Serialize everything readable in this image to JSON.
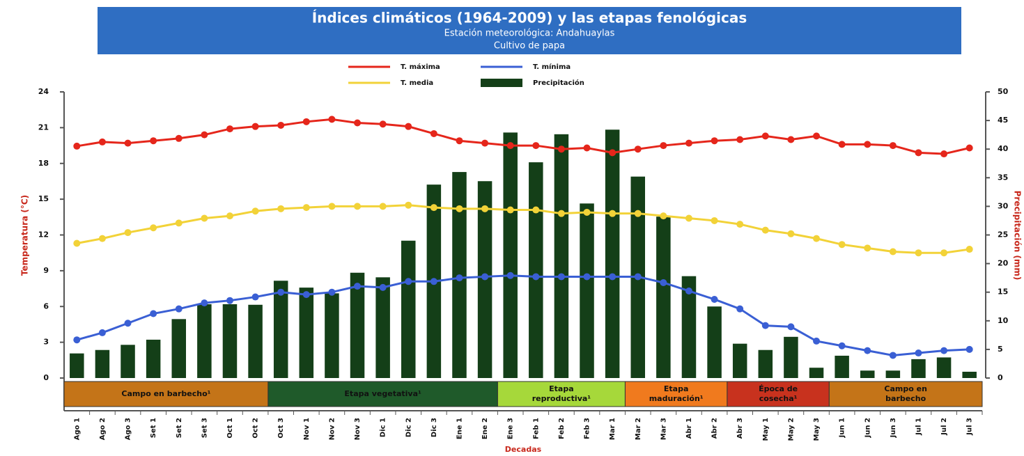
{
  "chart_data": {
    "type": "combo",
    "title": "Índices climáticos (1964-2009) y las etapas fenológicas",
    "subtitle": "Estación meteorológica: Andahuaylas",
    "subtitle2": "Cultivo de papa",
    "y_label": "Temperatura (°C)",
    "y2_label": "Precipitación (mm)",
    "x_label": "Decadas",
    "categories": [
      "Ago 1",
      "Ago 2",
      "Ago 3",
      "Set 1",
      "Set 2",
      "Set 3",
      "Oct 1",
      "Oct 2",
      "Oct 3",
      "Nov 1",
      "Nov 2",
      "Nov 3",
      "Dic 1",
      "Dic 2",
      "Dic 3",
      "Ene 1",
      "Ene 2",
      "Ene 3",
      "Feb 1",
      "Feb 2",
      "Feb 3",
      "Mar 1",
      "Mar 2",
      "Mar 3",
      "Abr 1",
      "Abr 2",
      "Abr 3",
      "May 1",
      "May 2",
      "May 3",
      "Jun 1",
      "Jun 2",
      "Jun 3",
      "Jul 1",
      "Jul 2",
      "Jul 3"
    ],
    "series": [
      {
        "name": "T. máxima",
        "type": "line",
        "color": "#e5261b",
        "values": [
          19.45,
          19.8,
          19.7,
          19.9,
          20.1,
          20.4,
          20.9,
          21.1,
          21.2,
          21.5,
          21.7,
          21.4,
          21.3,
          21.1,
          20.5,
          19.9,
          19.7,
          19.5,
          19.5,
          19.2,
          19.3,
          18.9,
          19.2,
          19.5,
          19.7,
          19.9,
          20.0,
          20.3,
          20.0,
          20.3,
          19.6,
          19.6,
          19.5,
          18.9,
          18.8,
          19.3
        ]
      },
      {
        "name": "T. mínima",
        "type": "line",
        "color": "#3a5fd4",
        "values": [
          3.2,
          3.8,
          4.6,
          5.4,
          5.8,
          6.3,
          6.5,
          6.8,
          7.2,
          7.0,
          7.2,
          7.7,
          7.6,
          8.1,
          8.1,
          8.4,
          8.5,
          8.6,
          8.5,
          8.5,
          8.5,
          8.5,
          8.5,
          8.0,
          7.3,
          6.6,
          5.8,
          4.4,
          4.3,
          3.1,
          2.7,
          2.3,
          1.9,
          2.1,
          2.3,
          2.4
        ]
      },
      {
        "name": "T. media",
        "type": "line",
        "color": "#f2d238",
        "values": [
          11.3,
          11.7,
          12.2,
          12.6,
          13.0,
          13.4,
          13.6,
          14.0,
          14.2,
          14.3,
          14.4,
          14.4,
          14.4,
          14.5,
          14.3,
          14.2,
          14.2,
          14.1,
          14.1,
          13.8,
          13.9,
          13.8,
          13.8,
          13.6,
          13.4,
          13.2,
          12.9,
          12.4,
          12.1,
          11.7,
          11.2,
          10.9,
          10.6,
          10.5,
          10.5,
          10.8
        ]
      },
      {
        "name": "Precipitación",
        "type": "bar",
        "axis": "y2",
        "color": "#143f18",
        "values": [
          4.3,
          4.9,
          5.8,
          6.7,
          10.3,
          12.9,
          12.9,
          12.8,
          17.0,
          15.8,
          14.8,
          18.4,
          17.6,
          24.0,
          33.8,
          36.0,
          34.4,
          42.9,
          37.7,
          42.6,
          30.5,
          43.4,
          35.2,
          28.2,
          17.8,
          12.5,
          6.0,
          4.9,
          7.2,
          1.8,
          3.9,
          1.3,
          1.3,
          3.3,
          3.6,
          1.1
        ]
      }
    ],
    "ylim": [
      0,
      24
    ],
    "yticks": [
      0,
      3,
      6,
      9,
      12,
      15,
      18,
      21,
      24
    ],
    "y2lim": [
      0,
      50
    ],
    "y2ticks": [
      0,
      5,
      10,
      15,
      20,
      25,
      30,
      35,
      40,
      45,
      50
    ],
    "stages": [
      {
        "label": "Campo en barbecho¹",
        "from": "Ago 1",
        "to": "Oct 2",
        "color": "#c47418"
      },
      {
        "label": "Etapa vegetativa¹",
        "from": "Oct 3",
        "to": "Ene 2",
        "color": "#1f5a2a"
      },
      {
        "label": "Etapa reproductiva¹",
        "from": "Ene 3",
        "to": "Mar 1",
        "color": "#a6d83a"
      },
      {
        "label": "Etapa maduración¹",
        "from": "Mar 2",
        "to": "Abr 2",
        "color": "#f07a1e"
      },
      {
        "label": "Época de cosecha¹",
        "from": "Abr 3",
        "to": "May 3",
        "color": "#c8321e"
      },
      {
        "label": "Campo en barbecho",
        "from": "Jun 1",
        "to": "Jul 3",
        "color": "#c47418"
      }
    ]
  }
}
